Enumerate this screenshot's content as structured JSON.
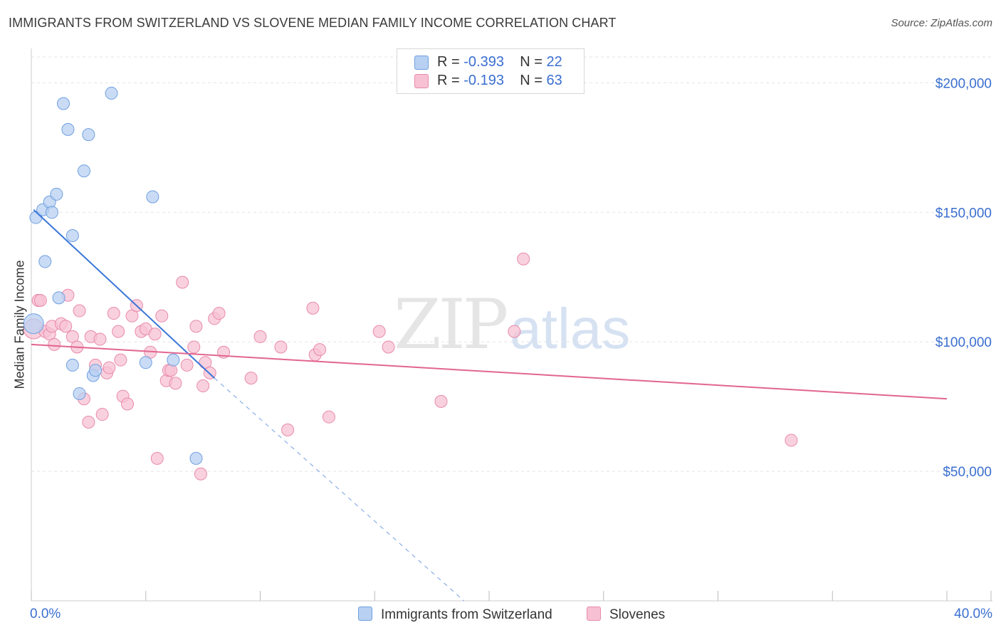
{
  "title": "IMMIGRANTS FROM SWITZERLAND VS SLOVENE MEDIAN FAMILY INCOME CORRELATION CHART",
  "source": "Source: ZipAtlas.com",
  "watermark": {
    "zip": "ZIP",
    "atlas": "atlas"
  },
  "legend": {
    "rows": [
      {
        "r_label": "R =",
        "r_value": "-0.393",
        "n_label": "N =",
        "n_value": "22"
      },
      {
        "r_label": "R =",
        "r_value": "-0.193",
        "n_label": "N =",
        "n_value": "63"
      }
    ],
    "bottom": [
      "Immigrants from Switzerland",
      "Slovenes"
    ]
  },
  "colors": {
    "blue_fill": "#b8d0f2",
    "blue_stroke": "#6f9fe0",
    "blue_line": "#3a76d8",
    "pink_fill": "#f7c1d3",
    "pink_stroke": "#e88aab",
    "pink_line": "#e2668f",
    "axis_text": "#3a6fd0",
    "grid": "#e3e3e3"
  },
  "chart_data": {
    "type": "scatter",
    "title": "IMMIGRANTS FROM SWITZERLAND VS SLOVENE MEDIAN FAMILY INCOME CORRELATION CHART",
    "xlabel": "",
    "ylabel": "Median Family Income",
    "xlim": [
      0,
      40
    ],
    "ylim": [
      0,
      210000
    ],
    "x_tick_labels": [
      "0.0%",
      "40.0%"
    ],
    "y_ticks": [
      50000,
      100000,
      150000,
      200000
    ],
    "y_tick_labels": [
      "$50,000",
      "$100,000",
      "$150,000",
      "$200,000"
    ],
    "series": [
      {
        "name": "Immigrants from Switzerland",
        "points": [
          [
            0.1,
            107000
          ],
          [
            0.2,
            148000
          ],
          [
            0.5,
            151000
          ],
          [
            0.8,
            154000
          ],
          [
            0.9,
            150000
          ],
          [
            1.1,
            157000
          ],
          [
            0.6,
            131000
          ],
          [
            1.2,
            117000
          ],
          [
            1.4,
            192000
          ],
          [
            1.6,
            182000
          ],
          [
            1.8,
            141000
          ],
          [
            1.8,
            91000
          ],
          [
            2.1,
            80000
          ],
          [
            2.3,
            166000
          ],
          [
            2.5,
            180000
          ],
          [
            2.7,
            87000
          ],
          [
            2.8,
            89000
          ],
          [
            3.5,
            196000
          ],
          [
            5.0,
            92000
          ],
          [
            5.3,
            156000
          ],
          [
            6.2,
            93000
          ],
          [
            7.2,
            55000
          ]
        ],
        "trend": {
          "x0": 0.1,
          "y0": 151000,
          "x1": 8.0,
          "y1": 86000,
          "dash_x1": 18.9,
          "dash_y1": 0
        }
      },
      {
        "name": "Slovenes",
        "points": [
          [
            0.1,
            105000
          ],
          [
            0.3,
            116000
          ],
          [
            0.4,
            116000
          ],
          [
            0.6,
            104000
          ],
          [
            0.8,
            103000
          ],
          [
            0.9,
            106000
          ],
          [
            1.0,
            99000
          ],
          [
            1.3,
            107000
          ],
          [
            1.5,
            106000
          ],
          [
            1.6,
            118000
          ],
          [
            1.8,
            102000
          ],
          [
            2.0,
            98000
          ],
          [
            2.1,
            112000
          ],
          [
            2.3,
            78000
          ],
          [
            2.5,
            69000
          ],
          [
            2.6,
            102000
          ],
          [
            2.8,
            91000
          ],
          [
            3.0,
            101000
          ],
          [
            3.1,
            72000
          ],
          [
            3.3,
            88000
          ],
          [
            3.4,
            90000
          ],
          [
            3.6,
            111000
          ],
          [
            3.8,
            104000
          ],
          [
            3.9,
            93000
          ],
          [
            4.0,
            79000
          ],
          [
            4.2,
            76000
          ],
          [
            4.4,
            110000
          ],
          [
            4.6,
            114000
          ],
          [
            4.8,
            104000
          ],
          [
            5.0,
            105000
          ],
          [
            5.2,
            96000
          ],
          [
            5.4,
            103000
          ],
          [
            5.5,
            55000
          ],
          [
            5.7,
            110000
          ],
          [
            5.9,
            85000
          ],
          [
            6.0,
            89000
          ],
          [
            6.1,
            89000
          ],
          [
            6.3,
            84000
          ],
          [
            6.6,
            123000
          ],
          [
            6.8,
            91000
          ],
          [
            7.1,
            98000
          ],
          [
            7.2,
            106000
          ],
          [
            7.4,
            49000
          ],
          [
            7.5,
            83000
          ],
          [
            7.6,
            92000
          ],
          [
            7.8,
            88000
          ],
          [
            8.0,
            109000
          ],
          [
            8.2,
            111000
          ],
          [
            8.4,
            96000
          ],
          [
            9.6,
            86000
          ],
          [
            10.0,
            102000
          ],
          [
            10.9,
            98000
          ],
          [
            11.2,
            66000
          ],
          [
            12.3,
            113000
          ],
          [
            12.4,
            95000
          ],
          [
            12.6,
            97000
          ],
          [
            13.0,
            71000
          ],
          [
            15.2,
            104000
          ],
          [
            15.6,
            98000
          ],
          [
            17.9,
            77000
          ],
          [
            21.1,
            104000
          ],
          [
            21.5,
            132000
          ],
          [
            33.2,
            62000
          ]
        ],
        "trend": {
          "x0": 0,
          "y0": 99000,
          "x1": 40,
          "y1": 78000
        }
      }
    ]
  }
}
